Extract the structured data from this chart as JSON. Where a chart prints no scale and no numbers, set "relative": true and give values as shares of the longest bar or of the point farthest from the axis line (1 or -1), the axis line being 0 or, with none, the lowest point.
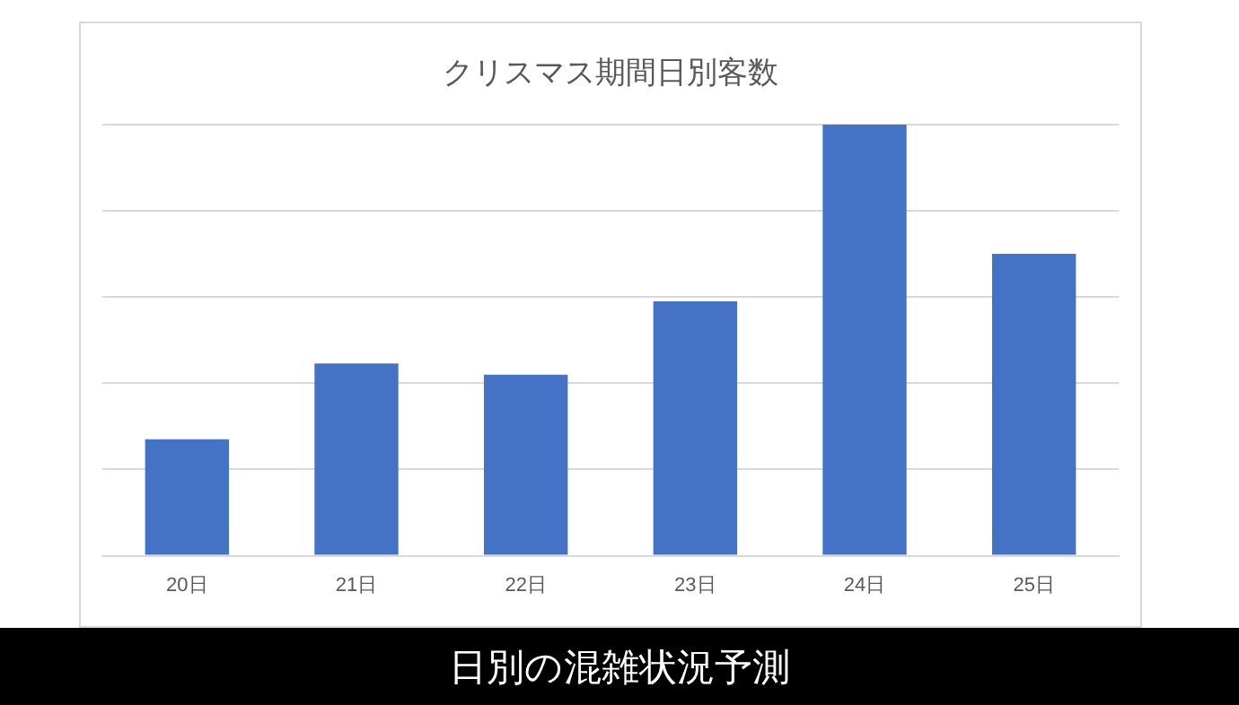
{
  "chart_data": {
    "type": "bar",
    "title": "クリスマス期間日別客数",
    "categories": [
      "20日",
      "21日",
      "22日",
      "23日",
      "24日",
      "25日"
    ],
    "values": [
      0.27,
      0.446,
      0.42,
      0.59,
      1,
      0.7
    ],
    "color": "#4472c4",
    "relative": true,
    "grid": "y",
    "legend": false,
    "annotations": [
      "日別の混雑状況予測"
    ]
  }
}
